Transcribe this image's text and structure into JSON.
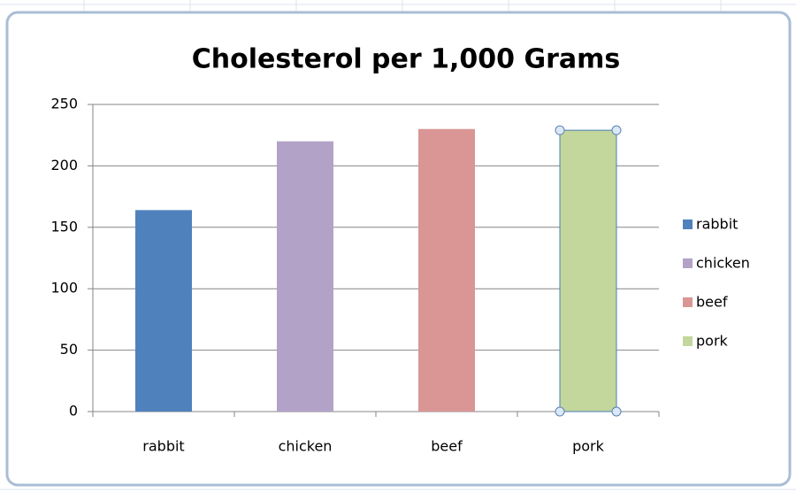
{
  "chart_data": {
    "type": "bar",
    "title": "Cholesterol per 1,000 Grams",
    "categories": [
      "rabbit",
      "chicken",
      "beef",
      "pork"
    ],
    "values": [
      164,
      220,
      230,
      229
    ],
    "colors": [
      "#4f81bd",
      "#b3a2c7",
      "#d99694",
      "#c3d69b"
    ],
    "ylim": [
      0,
      250
    ],
    "yticks": [
      0,
      50,
      100,
      150,
      200,
      250
    ],
    "grid": true,
    "legend": "right"
  }
}
